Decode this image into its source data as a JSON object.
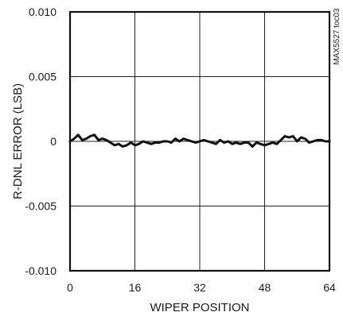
{
  "chart_data": {
    "type": "line",
    "title": "",
    "xlabel": "WIPER POSITION",
    "ylabel": "R-DNL ERROR (LSB)",
    "xlim": [
      0,
      64
    ],
    "ylim": [
      -0.01,
      0.01
    ],
    "xticks": [
      0,
      16,
      32,
      48,
      64
    ],
    "yticks": [
      0.01,
      0.005,
      0,
      -0.005,
      -0.01
    ],
    "xtick_labels": [
      "0",
      "16",
      "32",
      "48",
      "64"
    ],
    "ytick_labels": [
      "0.010",
      "0.005",
      "0",
      "-0.005",
      "-0.010"
    ],
    "grid": true,
    "legend": "none",
    "annotation": "MAX5527 toc03",
    "series": [
      {
        "x": [
          0,
          1,
          2,
          3,
          4,
          5,
          6,
          7,
          8,
          9,
          10,
          11,
          12,
          13,
          14,
          15,
          16,
          17,
          18,
          19,
          20,
          21,
          22,
          23,
          24,
          25,
          26,
          27,
          28,
          29,
          30,
          31,
          32,
          33,
          34,
          35,
          36,
          37,
          38,
          39,
          40,
          41,
          42,
          43,
          44,
          45,
          46,
          47,
          48,
          49,
          50,
          51,
          52,
          53,
          54,
          55,
          56,
          57,
          58,
          59,
          60,
          61,
          62,
          63,
          64
        ],
        "values": [
          0,
          0.0002,
          0.0005,
          0.0001,
          0.0002,
          0.0004,
          0.0005,
          0.0001,
          0.0002,
          0.0001,
          -0.0001,
          -0.0003,
          -0.0002,
          -0.0004,
          -0.0003,
          -0.0001,
          -0.0003,
          -0.0002,
          0,
          -0.0001,
          -0.0002,
          -0.0001,
          -0.0001,
          0,
          0,
          -0.0001,
          0.0002,
          0,
          0.0002,
          0.0001,
          0,
          -0.0001,
          0,
          0.0001,
          0,
          -0.0001,
          -0.0002,
          0.0001,
          -0.0001,
          0,
          -0.0002,
          -0.0001,
          -0.0002,
          -0.0001,
          -0.0001,
          -0.0004,
          -0.0001,
          -0.0002,
          -0.0003,
          -0.0002,
          -0.0001,
          -0.0002,
          0.0001,
          0.0004,
          0.0003,
          0.0004,
          0,
          0.0003,
          0.0002,
          -0.0001,
          0,
          0.0001,
          0.0001,
          0,
          0
        ]
      }
    ]
  }
}
